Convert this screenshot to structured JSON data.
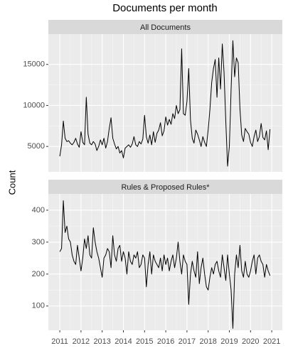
{
  "title": "Documents per month",
  "y_label": "Count",
  "chart_data": [
    {
      "type": "line",
      "strip": "All Documents",
      "color": "#000000",
      "grid": true,
      "x": [
        2011,
        2011.083,
        2011.167,
        2011.25,
        2011.333,
        2011.417,
        2011.5,
        2011.583,
        2011.667,
        2011.75,
        2011.833,
        2011.917,
        2012,
        2012.083,
        2012.167,
        2012.25,
        2012.333,
        2012.417,
        2012.5,
        2012.583,
        2012.667,
        2012.75,
        2012.833,
        2012.917,
        2013,
        2013.083,
        2013.167,
        2013.25,
        2013.333,
        2013.417,
        2013.5,
        2013.583,
        2013.667,
        2013.75,
        2013.833,
        2013.917,
        2014,
        2014.083,
        2014.167,
        2014.25,
        2014.333,
        2014.417,
        2014.5,
        2014.583,
        2014.667,
        2014.75,
        2014.833,
        2014.917,
        2015,
        2015.083,
        2015.167,
        2015.25,
        2015.333,
        2015.417,
        2015.5,
        2015.583,
        2015.667,
        2015.75,
        2015.833,
        2015.917,
        2016,
        2016.083,
        2016.167,
        2016.25,
        2016.333,
        2016.417,
        2016.5,
        2016.583,
        2016.667,
        2016.75,
        2016.833,
        2016.917,
        2017,
        2017.083,
        2017.167,
        2017.25,
        2017.333,
        2017.417,
        2017.5,
        2017.583,
        2017.667,
        2017.75,
        2017.833,
        2017.917,
        2018,
        2018.083,
        2018.167,
        2018.25,
        2018.333,
        2018.417,
        2018.5,
        2018.583,
        2018.667,
        2018.75,
        2018.833,
        2018.917,
        2019,
        2019.083,
        2019.167,
        2019.25,
        2019.333,
        2019.417,
        2019.5,
        2019.583,
        2019.667,
        2019.75,
        2019.833,
        2019.917,
        2020,
        2020.083,
        2020.167,
        2020.25,
        2020.333,
        2020.417,
        2020.5,
        2020.583,
        2020.667,
        2020.75,
        2020.833,
        2020.917
      ],
      "values": [
        3800,
        5200,
        8100,
        6000,
        5600,
        5700,
        5400,
        5200,
        5500,
        6000,
        5300,
        4900,
        6800,
        5500,
        5200,
        11000,
        6500,
        5400,
        5200,
        5600,
        5300,
        4500,
        5000,
        5800,
        5200,
        6000,
        4800,
        5600,
        7200,
        8500,
        6000,
        5300,
        4700,
        5000,
        4200,
        4500,
        3600,
        4800,
        5000,
        5200,
        4900,
        5300,
        6200,
        5200,
        5000,
        5600,
        5300,
        5900,
        8800,
        6200,
        5400,
        6400,
        5200,
        6800,
        5500,
        6600,
        7000,
        7900,
        6300,
        6900,
        8600,
        7600,
        8300,
        7700,
        9000,
        8400,
        10000,
        9000,
        9500,
        16900,
        9000,
        8800,
        10500,
        14500,
        8200,
        6000,
        5400,
        7000,
        6500,
        5800,
        5000,
        6200,
        5500,
        5000,
        7000,
        9500,
        12800,
        14500,
        15600,
        11000,
        15800,
        12000,
        17500,
        14000,
        8000,
        2600,
        5000,
        12000,
        17900,
        13500,
        15800,
        15200,
        9600,
        6400,
        5600,
        7200,
        6800,
        6500,
        5500,
        5000,
        6200,
        7000,
        5600,
        6200,
        7800,
        6100,
        5800,
        6900,
        4600,
        7100
      ],
      "xlim": [
        2010.46,
        2021.5
      ],
      "xticks": [
        2011,
        2012,
        2013,
        2014,
        2015,
        2016,
        2017,
        2018,
        2019,
        2020,
        2021
      ],
      "ylim": [
        1900,
        18700
      ],
      "yticks": [
        5000,
        10000,
        15000
      ]
    },
    {
      "type": "line",
      "strip": "Rules & Proposed Rules*",
      "color": "#000000",
      "grid": true,
      "x": [
        2011,
        2011.083,
        2011.167,
        2011.25,
        2011.333,
        2011.417,
        2011.5,
        2011.583,
        2011.667,
        2011.75,
        2011.833,
        2011.917,
        2012,
        2012.083,
        2012.167,
        2012.25,
        2012.333,
        2012.417,
        2012.5,
        2012.583,
        2012.667,
        2012.75,
        2012.833,
        2012.917,
        2013,
        2013.083,
        2013.167,
        2013.25,
        2013.333,
        2013.417,
        2013.5,
        2013.583,
        2013.667,
        2013.75,
        2013.833,
        2013.917,
        2014,
        2014.083,
        2014.167,
        2014.25,
        2014.333,
        2014.417,
        2014.5,
        2014.583,
        2014.667,
        2014.75,
        2014.833,
        2014.917,
        2015,
        2015.083,
        2015.167,
        2015.25,
        2015.333,
        2015.417,
        2015.5,
        2015.583,
        2015.667,
        2015.75,
        2015.833,
        2015.917,
        2016,
        2016.083,
        2016.167,
        2016.25,
        2016.333,
        2016.417,
        2016.5,
        2016.583,
        2016.667,
        2016.75,
        2016.833,
        2016.917,
        2017,
        2017.083,
        2017.167,
        2017.25,
        2017.333,
        2017.417,
        2017.5,
        2017.583,
        2017.667,
        2017.75,
        2017.833,
        2017.917,
        2018,
        2018.083,
        2018.167,
        2018.25,
        2018.333,
        2018.417,
        2018.5,
        2018.583,
        2018.667,
        2018.75,
        2018.833,
        2018.917,
        2019,
        2019.083,
        2019.167,
        2019.25,
        2019.333,
        2019.417,
        2019.5,
        2019.583,
        2019.667,
        2019.75,
        2019.833,
        2019.917,
        2020,
        2020.083,
        2020.167,
        2020.25,
        2020.333,
        2020.417,
        2020.5,
        2020.583,
        2020.667,
        2020.75,
        2020.833,
        2020.917
      ],
      "values": [
        270,
        280,
        430,
        330,
        350,
        310,
        300,
        260,
        240,
        230,
        290,
        250,
        210,
        250,
        310,
        280,
        320,
        260,
        250,
        345,
        300,
        270,
        250,
        220,
        190,
        250,
        260,
        280,
        270,
        220,
        320,
        260,
        240,
        280,
        290,
        240,
        270,
        250,
        200,
        270,
        240,
        230,
        260,
        250,
        270,
        220,
        230,
        260,
        250,
        160,
        230,
        270,
        200,
        260,
        240,
        230,
        220,
        250,
        210,
        260,
        230,
        250,
        210,
        240,
        260,
        220,
        250,
        300,
        240,
        200,
        260,
        240,
        230,
        105,
        200,
        240,
        210,
        190,
        270,
        170,
        220,
        250,
        200,
        160,
        150,
        190,
        220,
        200,
        230,
        240,
        210,
        190,
        260,
        220,
        180,
        260,
        200,
        150,
        30,
        200,
        260,
        220,
        290,
        210,
        190,
        240,
        200,
        190,
        210,
        240,
        260,
        200,
        250,
        260,
        240,
        230,
        190,
        230,
        210,
        195
      ],
      "xlim": [
        2010.46,
        2021.5
      ],
      "xticks": [
        2011,
        2012,
        2013,
        2014,
        2015,
        2016,
        2017,
        2018,
        2019,
        2020,
        2021
      ],
      "ylim": [
        24,
        451
      ],
      "yticks": [
        100,
        200,
        300,
        400
      ]
    }
  ]
}
